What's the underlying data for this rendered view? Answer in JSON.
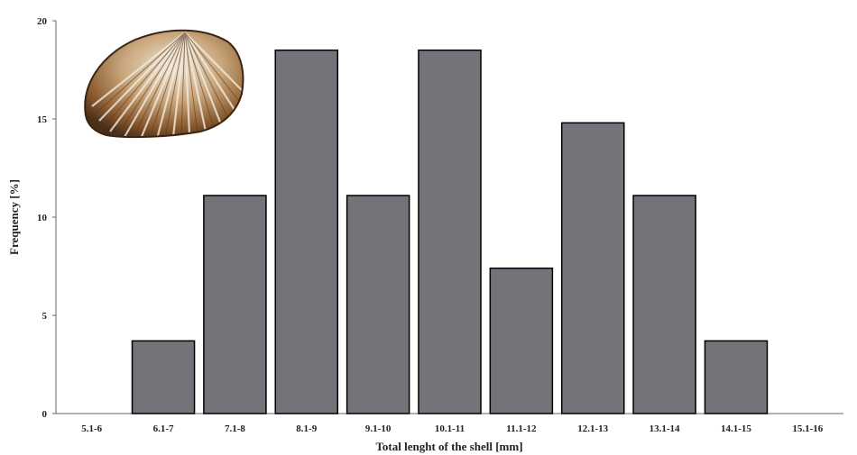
{
  "chart_data": {
    "type": "bar",
    "categories": [
      "5.1-6",
      "6.1-7",
      "7.1-8",
      "8.1-9",
      "9.1-10",
      "10.1-11",
      "11.1-12",
      "12.1-13",
      "13.1-14",
      "14.1-15",
      "15.1-16"
    ],
    "values": [
      0,
      3.7,
      11.1,
      18.5,
      11.1,
      18.5,
      7.4,
      14.8,
      11.1,
      3.7,
      0
    ],
    "xlabel": "Total lenght of the shell [mm]",
    "ylabel": "Frequency [%]",
    "ylim": [
      0,
      20
    ],
    "yticks": [
      0,
      5,
      10,
      15,
      20
    ],
    "grid": false,
    "colors": {
      "bar_fill": "#727479",
      "bar_stroke": "#000000"
    },
    "image": {
      "description": "cockle-shell-photo"
    }
  }
}
